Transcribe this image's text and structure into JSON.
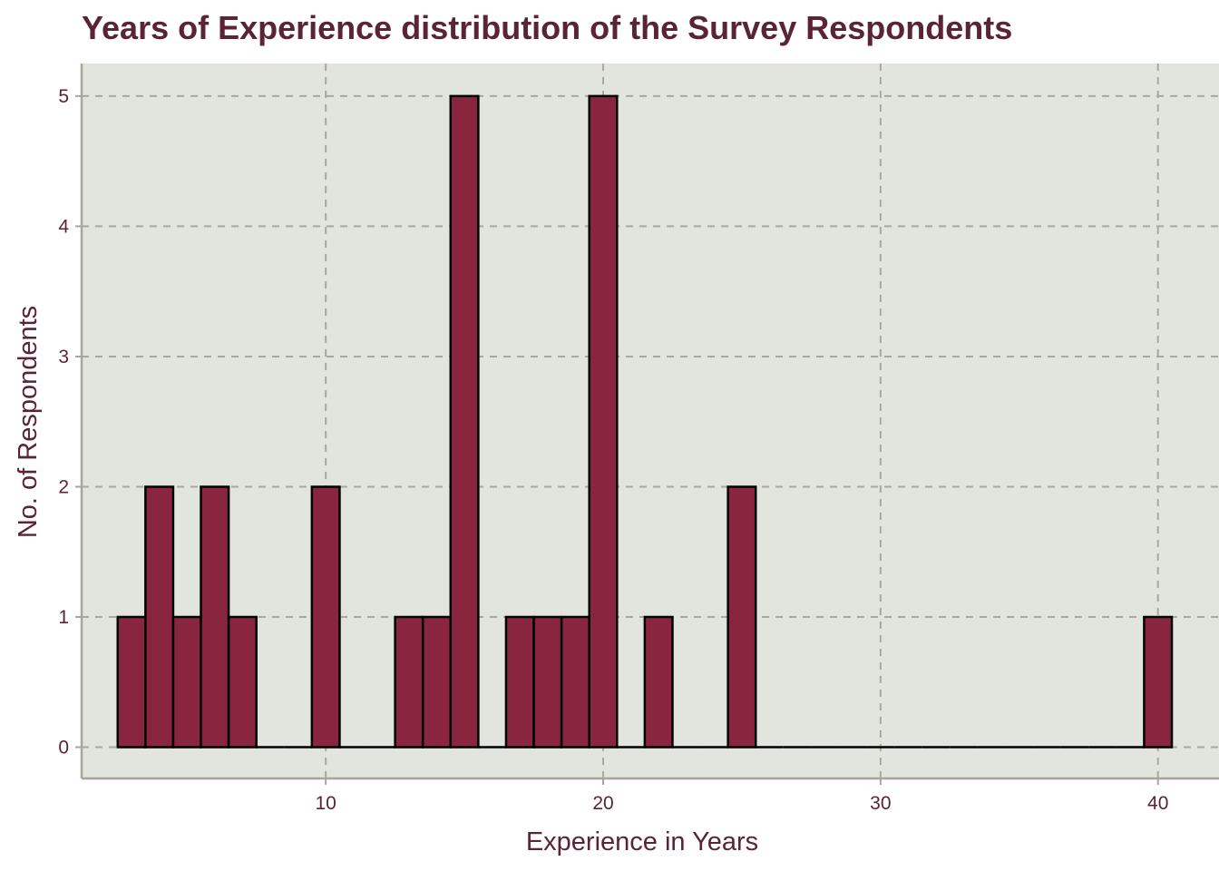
{
  "chart_data": {
    "type": "bar",
    "subtype": "histogram",
    "title": "Years of Experience distribution of the Survey Respondents",
    "xlabel": "Experience in Years",
    "ylabel": "No. of Respondents",
    "xlim": [
      1.2,
      42.2
    ],
    "ylim": [
      -0.24,
      5.25
    ],
    "xticks": [
      10,
      20,
      30,
      40
    ],
    "yticks": [
      0,
      1,
      2,
      3,
      4,
      5
    ],
    "bin_width": 1,
    "bin_centers": [
      3,
      4,
      5,
      6,
      7,
      8,
      9,
      10,
      11,
      12,
      13,
      14,
      15,
      16,
      17,
      18,
      19,
      20,
      21,
      22,
      23,
      24,
      25,
      26,
      27,
      28,
      29,
      30,
      31,
      32,
      33,
      34,
      35,
      36,
      37,
      38,
      39,
      40
    ],
    "values": [
      1,
      2,
      1,
      2,
      1,
      0,
      0,
      2,
      0,
      0,
      1,
      1,
      5,
      0,
      1,
      1,
      1,
      5,
      0,
      1,
      0,
      0,
      2,
      0,
      0,
      0,
      0,
      0,
      0,
      0,
      0,
      0,
      0,
      0,
      0,
      0,
      0,
      1
    ],
    "grid": true,
    "legend": "none",
    "colors": {
      "bar_fill": "#8a2540",
      "bar_edge": "#000000",
      "panel_background": "#e1e5de",
      "grid": "#aaa89e",
      "text": "#5a2434"
    }
  }
}
